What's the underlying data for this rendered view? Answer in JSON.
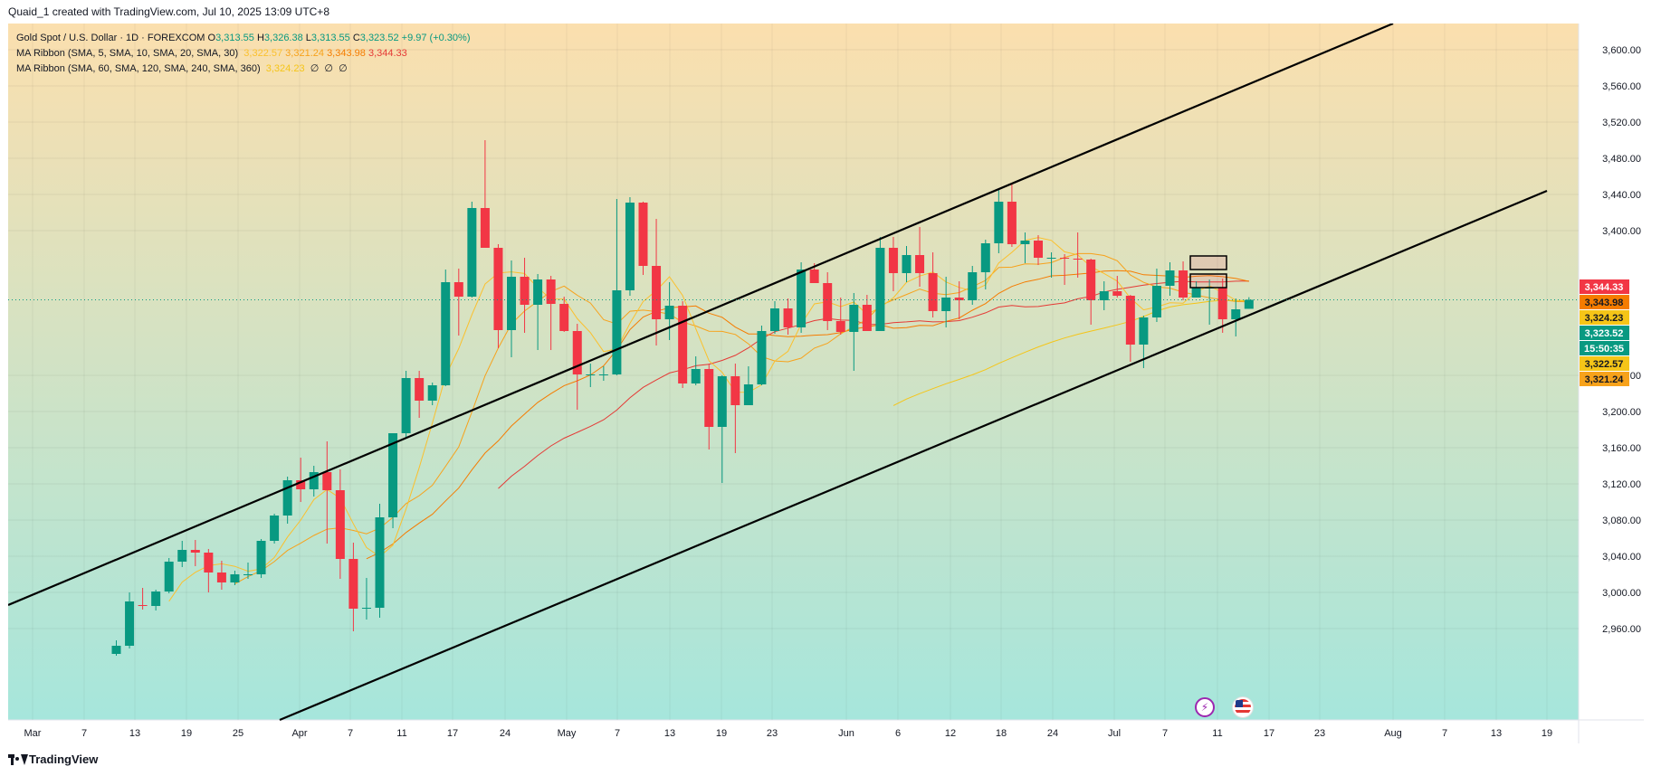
{
  "header": {
    "credit": "Quaid_1 created with TradingView.com, Jul 10, 2025 13:09 UTC+8"
  },
  "legend": {
    "symbol_title": "Gold Spot / U.S. Dollar · 1D · FOREXCOM",
    "o_label": "O",
    "o_value": "3,313.55",
    "h_label": "H",
    "h_value": "3,326.38",
    "l_label": "L",
    "l_value": "3,313.55",
    "c_label": "C",
    "c_value": "3,323.52",
    "change": "+9.97 (+0.30%)",
    "ribbon1_label": "MA Ribbon (SMA, 5, SMA, 10, SMA, 20, SMA, 30)",
    "ribbon1_values": [
      "3,322.57",
      "3,321.24",
      "3,343.98",
      "3,344.33"
    ],
    "ribbon2_label": "MA Ribbon (SMA, 60, SMA, 120, SMA, 240, SMA, 360)",
    "ribbon2_values": [
      "3,324.23",
      "∅",
      "∅",
      "∅"
    ]
  },
  "footer": {
    "brand": "TradingView"
  },
  "events": [
    {
      "name": "flash-event-icon",
      "glyph": "⚡",
      "color": "#9c27b0"
    },
    {
      "name": "us-flag-event-icon",
      "glyph": "",
      "color": "#e53935"
    }
  ],
  "colors": {
    "up": "#089981",
    "down": "#f23645",
    "bg_top": "#fbdfae",
    "bg_bottom": "#a6e6dc",
    "ma5": "#fbc02d",
    "ma10": "#f7a21b",
    "ma20": "#f57c00",
    "ma30": "#e53935",
    "ma60": "#f5c518"
  },
  "chart_data": {
    "type": "candlestick",
    "title": "Gold Spot / U.S. Dollar · 1D · FOREXCOM",
    "ylim": [
      2930,
      3650
    ],
    "y_ticks": [
      "3,600.00",
      "3,560.00",
      "3,520.00",
      "3,480.00",
      "3,440.00",
      "3,400.00",
      "3,240.00",
      "3,200.00",
      "3,160.00",
      "3,120.00",
      "3,080.00",
      "3,040.00",
      "3,000.00",
      "2,960.00"
    ],
    "x_ticks": [
      "Mar",
      "7",
      "13",
      "19",
      "25",
      "Apr",
      "7",
      "11",
      "17",
      "24",
      "May",
      "7",
      "13",
      "19",
      "23",
      "Jun",
      "6",
      "12",
      "18",
      "24",
      "Jul",
      "7",
      "11",
      "17",
      "23",
      "Aug",
      "7",
      "13",
      "19"
    ],
    "price_labels": [
      {
        "text": "3,344.33",
        "bg": "#f23645",
        "fg": "#ffffff"
      },
      {
        "text": "3,343.98",
        "bg": "#f57c00",
        "fg": "#131722"
      },
      {
        "text": "3,324.23",
        "bg": "#f5c518",
        "fg": "#131722"
      },
      {
        "text": "3,323.52",
        "bg": "#089981",
        "fg": "#ffffff"
      },
      {
        "text": "15:50:35",
        "bg": "#089981",
        "fg": "#ffffff"
      },
      {
        "text": "3,322.57",
        "bg": "#f5c518",
        "fg": "#131722"
      },
      {
        "text": "3,321.24",
        "bg": "#f7a21b",
        "fg": "#131722"
      }
    ],
    "candles": [
      {
        "d": "Mar 12",
        "o": 2932,
        "h": 2947,
        "l": 2930,
        "c": 2941
      },
      {
        "d": "Mar 13",
        "o": 2941,
        "h": 3000,
        "l": 2938,
        "c": 2990
      },
      {
        "d": "Mar 14",
        "o": 2986,
        "h": 3005,
        "l": 2981,
        "c": 2985
      },
      {
        "d": "Mar 17",
        "o": 2985,
        "h": 3003,
        "l": 2980,
        "c": 3001
      },
      {
        "d": "Mar 18",
        "o": 3001,
        "h": 3038,
        "l": 2999,
        "c": 3034
      },
      {
        "d": "Mar 19",
        "o": 3034,
        "h": 3057,
        "l": 3028,
        "c": 3047
      },
      {
        "d": "Mar 20",
        "o": 3047,
        "h": 3058,
        "l": 3029,
        "c": 3044
      },
      {
        "d": "Mar 21",
        "o": 3044,
        "h": 3048,
        "l": 3000,
        "c": 3022
      },
      {
        "d": "Mar 24",
        "o": 3022,
        "h": 3035,
        "l": 3003,
        "c": 3011
      },
      {
        "d": "Mar 25",
        "o": 3011,
        "h": 3024,
        "l": 3008,
        "c": 3020
      },
      {
        "d": "Mar 26",
        "o": 3020,
        "h": 3033,
        "l": 3015,
        "c": 3020
      },
      {
        "d": "Mar 27",
        "o": 3020,
        "h": 3059,
        "l": 3016,
        "c": 3057
      },
      {
        "d": "Mar 28",
        "o": 3057,
        "h": 3087,
        "l": 3054,
        "c": 3085
      },
      {
        "d": "Mar 31",
        "o": 3085,
        "h": 3128,
        "l": 3076,
        "c": 3124
      },
      {
        "d": "Apr 1",
        "o": 3124,
        "h": 3149,
        "l": 3100,
        "c": 3114
      },
      {
        "d": "Apr 2",
        "o": 3114,
        "h": 3140,
        "l": 3106,
        "c": 3133
      },
      {
        "d": "Apr 3",
        "o": 3133,
        "h": 3167,
        "l": 3054,
        "c": 3113
      },
      {
        "d": "Apr 4",
        "o": 3113,
        "h": 3136,
        "l": 3015,
        "c": 3037
      },
      {
        "d": "Apr 7",
        "o": 3037,
        "h": 3055,
        "l": 2957,
        "c": 2982
      },
      {
        "d": "Apr 8",
        "o": 2982,
        "h": 3016,
        "l": 2970,
        "c": 2983
      },
      {
        "d": "Apr 9",
        "o": 2983,
        "h": 3098,
        "l": 2972,
        "c": 3083
      },
      {
        "d": "Apr 10",
        "o": 3083,
        "h": 3175,
        "l": 3071,
        "c": 3176
      },
      {
        "d": "Apr 11",
        "o": 3176,
        "h": 3245,
        "l": 3172,
        "c": 3237
      },
      {
        "d": "Apr 14",
        "o": 3237,
        "h": 3245,
        "l": 3193,
        "c": 3212
      },
      {
        "d": "Apr 15",
        "o": 3212,
        "h": 3232,
        "l": 3207,
        "c": 3229
      },
      {
        "d": "Apr 16",
        "o": 3229,
        "h": 3357,
        "l": 3228,
        "c": 3343
      },
      {
        "d": "Apr 17",
        "o": 3343,
        "h": 3358,
        "l": 3284,
        "c": 3327
      },
      {
        "d": "Apr 18",
        "o": 3327,
        "h": 3432,
        "l": 3326,
        "c": 3425
      },
      {
        "d": "Apr 21",
        "o": 3425,
        "h": 3500,
        "l": 3381,
        "c": 3381
      },
      {
        "d": "Apr 22",
        "o": 3381,
        "h": 3385,
        "l": 3270,
        "c": 3290
      },
      {
        "d": "Apr 23",
        "o": 3290,
        "h": 3367,
        "l": 3260,
        "c": 3349
      },
      {
        "d": "Apr 24",
        "o": 3349,
        "h": 3370,
        "l": 3287,
        "c": 3318
      },
      {
        "d": "Apr 25",
        "o": 3318,
        "h": 3352,
        "l": 3268,
        "c": 3346
      },
      {
        "d": "Apr 28",
        "o": 3346,
        "h": 3350,
        "l": 3268,
        "c": 3319
      },
      {
        "d": "Apr 29",
        "o": 3319,
        "h": 3327,
        "l": 3288,
        "c": 3289
      },
      {
        "d": "Apr 30",
        "o": 3289,
        "h": 3297,
        "l": 3202,
        "c": 3241
      },
      {
        "d": "May 1",
        "o": 3241,
        "h": 3253,
        "l": 3227,
        "c": 3241
      },
      {
        "d": "May 2",
        "o": 3241,
        "h": 3250,
        "l": 3234,
        "c": 3241
      },
      {
        "d": "May 5",
        "o": 3241,
        "h": 3435,
        "l": 3240,
        "c": 3334
      },
      {
        "d": "May 6",
        "o": 3334,
        "h": 3437,
        "l": 3328,
        "c": 3431
      },
      {
        "d": "May 7",
        "o": 3431,
        "h": 3432,
        "l": 3351,
        "c": 3361
      },
      {
        "d": "May 8",
        "o": 3361,
        "h": 3413,
        "l": 3273,
        "c": 3302
      },
      {
        "d": "May 9",
        "o": 3302,
        "h": 3343,
        "l": 3279,
        "c": 3317
      },
      {
        "d": "May 12",
        "o": 3317,
        "h": 3322,
        "l": 3226,
        "c": 3231
      },
      {
        "d": "May 13",
        "o": 3231,
        "h": 3261,
        "l": 3229,
        "c": 3247
      },
      {
        "d": "May 14",
        "o": 3247,
        "h": 3253,
        "l": 3158,
        "c": 3183
      },
      {
        "d": "May 15",
        "o": 3183,
        "h": 3240,
        "l": 3121,
        "c": 3239
      },
      {
        "d": "May 16",
        "o": 3239,
        "h": 3253,
        "l": 3154,
        "c": 3207
      },
      {
        "d": "May 19",
        "o": 3207,
        "h": 3250,
        "l": 3207,
        "c": 3230
      },
      {
        "d": "May 20",
        "o": 3230,
        "h": 3295,
        "l": 3229,
        "c": 3289
      },
      {
        "d": "May 21",
        "o": 3289,
        "h": 3322,
        "l": 3286,
        "c": 3314
      },
      {
        "d": "May 22",
        "o": 3314,
        "h": 3325,
        "l": 3285,
        "c": 3293
      },
      {
        "d": "May 23",
        "o": 3293,
        "h": 3365,
        "l": 3287,
        "c": 3357
      },
      {
        "d": "May 26",
        "o": 3357,
        "h": 3364,
        "l": 3342,
        "c": 3342
      },
      {
        "d": "May 27",
        "o": 3342,
        "h": 3354,
        "l": 3290,
        "c": 3300
      },
      {
        "d": "May 28",
        "o": 3300,
        "h": 3326,
        "l": 3285,
        "c": 3288
      },
      {
        "d": "May 29",
        "o": 3288,
        "h": 3331,
        "l": 3245,
        "c": 3318
      },
      {
        "d": "May 30",
        "o": 3318,
        "h": 3329,
        "l": 3289,
        "c": 3289
      },
      {
        "d": "Jun 2",
        "o": 3289,
        "h": 3393,
        "l": 3289,
        "c": 3381
      },
      {
        "d": "Jun 3",
        "o": 3381,
        "h": 3393,
        "l": 3333,
        "c": 3353
      },
      {
        "d": "Jun 4",
        "o": 3353,
        "h": 3383,
        "l": 3343,
        "c": 3373
      },
      {
        "d": "Jun 5",
        "o": 3373,
        "h": 3404,
        "l": 3338,
        "c": 3353
      },
      {
        "d": "Jun 6",
        "o": 3353,
        "h": 3376,
        "l": 3304,
        "c": 3311
      },
      {
        "d": "Jun 9",
        "o": 3311,
        "h": 3349,
        "l": 3293,
        "c": 3326
      },
      {
        "d": "Jun 10",
        "o": 3326,
        "h": 3344,
        "l": 3302,
        "c": 3323
      },
      {
        "d": "Jun 11",
        "o": 3323,
        "h": 3361,
        "l": 3318,
        "c": 3354
      },
      {
        "d": "Jun 12",
        "o": 3354,
        "h": 3390,
        "l": 3335,
        "c": 3386
      },
      {
        "d": "Jun 13",
        "o": 3386,
        "h": 3446,
        "l": 3375,
        "c": 3432
      },
      {
        "d": "Jun 16",
        "o": 3432,
        "h": 3452,
        "l": 3382,
        "c": 3385
      },
      {
        "d": "Jun 17",
        "o": 3385,
        "h": 3398,
        "l": 3364,
        "c": 3389
      },
      {
        "d": "Jun 18",
        "o": 3389,
        "h": 3395,
        "l": 3362,
        "c": 3370
      },
      {
        "d": "Jun 19",
        "o": 3370,
        "h": 3376,
        "l": 3348,
        "c": 3370
      },
      {
        "d": "Jun 20",
        "o": 3370,
        "h": 3374,
        "l": 3340,
        "c": 3369
      },
      {
        "d": "Jun 23",
        "o": 3369,
        "h": 3398,
        "l": 3348,
        "c": 3368
      },
      {
        "d": "Jun 24",
        "o": 3368,
        "h": 3369,
        "l": 3296,
        "c": 3323
      },
      {
        "d": "Jun 25",
        "o": 3323,
        "h": 3344,
        "l": 3312,
        "c": 3333
      },
      {
        "d": "Jun 26",
        "o": 3333,
        "h": 3350,
        "l": 3326,
        "c": 3328
      },
      {
        "d": "Jun 27",
        "o": 3328,
        "h": 3329,
        "l": 3255,
        "c": 3274
      },
      {
        "d": "Jun 30",
        "o": 3274,
        "h": 3306,
        "l": 3248,
        "c": 3304
      },
      {
        "d": "Jul 1",
        "o": 3304,
        "h": 3358,
        "l": 3299,
        "c": 3339
      },
      {
        "d": "Jul 2",
        "o": 3339,
        "h": 3365,
        "l": 3328,
        "c": 3356
      },
      {
        "d": "Jul 3",
        "o": 3356,
        "h": 3366,
        "l": 3323,
        "c": 3326
      },
      {
        "d": "Jul 4",
        "o": 3326,
        "h": 3344,
        "l": 3326,
        "c": 3337
      },
      {
        "d": "Jul 7",
        "o": 3337,
        "h": 3346,
        "l": 3296,
        "c": 3337
      },
      {
        "d": "Jul 8",
        "o": 3337,
        "h": 3347,
        "l": 3287,
        "c": 3302
      },
      {
        "d": "Jul 9",
        "o": 3302,
        "h": 3325,
        "l": 3283,
        "c": 3313
      },
      {
        "d": "Jul 10",
        "o": 3313.55,
        "h": 3326.38,
        "l": 3313.55,
        "c": 3323.52
      }
    ]
  }
}
